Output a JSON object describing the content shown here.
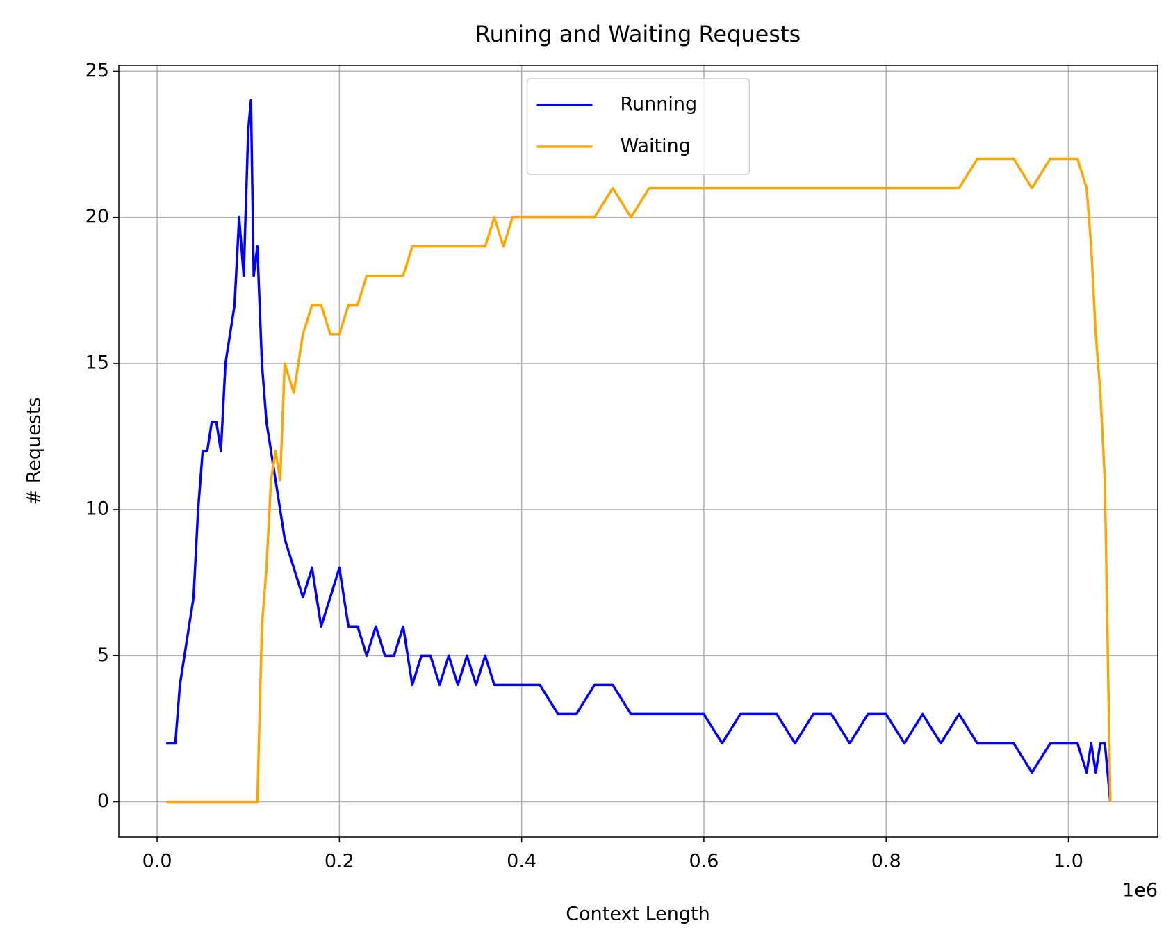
{
  "chart_data": {
    "type": "line",
    "title": "Runing and Waiting Requests",
    "x_label": "Context Length",
    "y_label": "# Requests",
    "x_offset_label": "1e6",
    "x": [
      10000,
      15000,
      20000,
      25000,
      30000,
      35000,
      40000,
      45000,
      50000,
      55000,
      60000,
      65000,
      70000,
      75000,
      80000,
      85000,
      90000,
      95000,
      100000,
      103000,
      106000,
      110000,
      115000,
      120000,
      125000,
      130000,
      135000,
      140000,
      150000,
      160000,
      170000,
      180000,
      190000,
      200000,
      210000,
      220000,
      230000,
      240000,
      250000,
      260000,
      270000,
      280000,
      290000,
      300000,
      310000,
      320000,
      330000,
      340000,
      350000,
      360000,
      370000,
      380000,
      390000,
      400000,
      420000,
      440000,
      460000,
      480000,
      500000,
      520000,
      540000,
      560000,
      580000,
      600000,
      620000,
      640000,
      660000,
      680000,
      700000,
      720000,
      740000,
      760000,
      780000,
      800000,
      820000,
      840000,
      860000,
      880000,
      900000,
      920000,
      940000,
      960000,
      980000,
      1000000,
      1010000,
      1020000,
      1025000,
      1030000,
      1035000,
      1040000,
      1046000
    ],
    "series": [
      {
        "name": "Running",
        "color": "#0000ff",
        "values": [
          2,
          2,
          2,
          4,
          5,
          6,
          7,
          10,
          12,
          12,
          13,
          13,
          12,
          15,
          16,
          17,
          20,
          18,
          23,
          24,
          18,
          19,
          15,
          13,
          12,
          11,
          10,
          9,
          8,
          7,
          8,
          6,
          7,
          8,
          6,
          6,
          5,
          6,
          5,
          5,
          6,
          4,
          5,
          5,
          4,
          5,
          4,
          5,
          4,
          5,
          4,
          4,
          4,
          4,
          4,
          3,
          3,
          4,
          4,
          3,
          3,
          3,
          3,
          3,
          2,
          3,
          3,
          3,
          2,
          3,
          3,
          2,
          3,
          3,
          2,
          3,
          2,
          3,
          2,
          2,
          2,
          1,
          2,
          2,
          2,
          1,
          2,
          1,
          2,
          2,
          0
        ]
      },
      {
        "name": "Waiting",
        "color": "#ffa500",
        "values": [
          0,
          0,
          0,
          0,
          0,
          0,
          0,
          0,
          0,
          0,
          0,
          0,
          0,
          0,
          0,
          0,
          0,
          0,
          0,
          0,
          0,
          0,
          6,
          8,
          11,
          12,
          11,
          15,
          14,
          16,
          17,
          17,
          16,
          16,
          17,
          17,
          18,
          18,
          18,
          18,
          18,
          19,
          19,
          19,
          19,
          19,
          19,
          19,
          19,
          19,
          20,
          19,
          20,
          20,
          20,
          20,
          20,
          20,
          21,
          20,
          21,
          21,
          21,
          21,
          21,
          21,
          21,
          21,
          21,
          21,
          21,
          21,
          21,
          21,
          21,
          21,
          21,
          21,
          22,
          22,
          22,
          21,
          22,
          22,
          22,
          21,
          19,
          16,
          14,
          11,
          0
        ]
      }
    ],
    "xlim": [
      -42000,
      1098000
    ],
    "ylim": [
      -1.2,
      25.2
    ],
    "xticks": [
      {
        "value": 0,
        "label": "0.0"
      },
      {
        "value": 200000,
        "label": "0.2"
      },
      {
        "value": 400000,
        "label": "0.4"
      },
      {
        "value": 600000,
        "label": "0.6"
      },
      {
        "value": 800000,
        "label": "0.8"
      },
      {
        "value": 1000000,
        "label": "1.0"
      }
    ],
    "yticks": [
      0,
      5,
      10,
      15,
      20,
      25
    ],
    "grid": true,
    "legend": "upper center"
  }
}
